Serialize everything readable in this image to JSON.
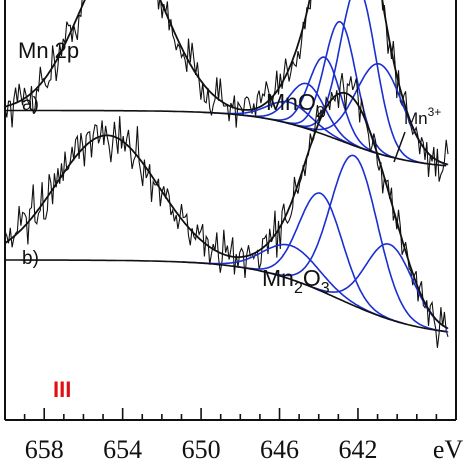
{
  "chart_data": {
    "type": "line",
    "title": "Mn 2p",
    "xlabel": "eV",
    "ylabel": "",
    "x_axis_reversed": true,
    "xlim": [
      660,
      637
    ],
    "x_ticks": [
      658,
      654,
      650,
      646,
      642
    ],
    "y_ticks": [],
    "grid": false,
    "colors": {
      "data": "#111111",
      "envelope": "#111111",
      "background_line": "#111111",
      "components": "#1a2fd1",
      "marker": "#e01010"
    },
    "panels": [
      {
        "label": "a)",
        "compound_main": "MnO",
        "compound_sub": "2",
        "annotation_main": "Mn",
        "annotation_sup": "3+",
        "satellite": {
          "center": 654.0,
          "amplitude": 1.3,
          "width": 2.2
        },
        "background": {
          "left": 0.62,
          "right": 0.15,
          "center": 643.0,
          "width": 2.0
        },
        "components": [
          {
            "center": 645.5,
            "amplitude": 0.17,
            "width": 1.1
          },
          {
            "center": 644.6,
            "amplitude": 0.36,
            "width": 0.9
          },
          {
            "center": 643.7,
            "amplitude": 0.62,
            "width": 0.8
          },
          {
            "center": 642.9,
            "amplitude": 0.95,
            "width": 0.8
          },
          {
            "center": 642.0,
            "amplitude": 1.28,
            "width": 0.9
          },
          {
            "center": 640.9,
            "amplitude": 0.72,
            "width": 1.2
          }
        ],
        "noise": 0.11
      },
      {
        "label": "b)",
        "compound_main": "Mn",
        "compound_sub": "2",
        "compound_tail": "O",
        "compound_tail_sub": "3",
        "satellite": {
          "center": 654.8,
          "amplitude": 1.0,
          "width": 2.6
        },
        "background": {
          "left": 0.64,
          "right": 0.02,
          "center": 643.0,
          "width": 2.2
        },
        "components": [
          {
            "center": 645.4,
            "amplitude": 0.27,
            "width": 1.4
          },
          {
            "center": 643.9,
            "amplitude": 0.78,
            "width": 1.1
          },
          {
            "center": 642.2,
            "amplitude": 1.2,
            "width": 1.2
          },
          {
            "center": 640.4,
            "amplitude": 0.6,
            "width": 1.2
          }
        ],
        "noise": 0.11
      }
    ],
    "marker_text": "III"
  }
}
